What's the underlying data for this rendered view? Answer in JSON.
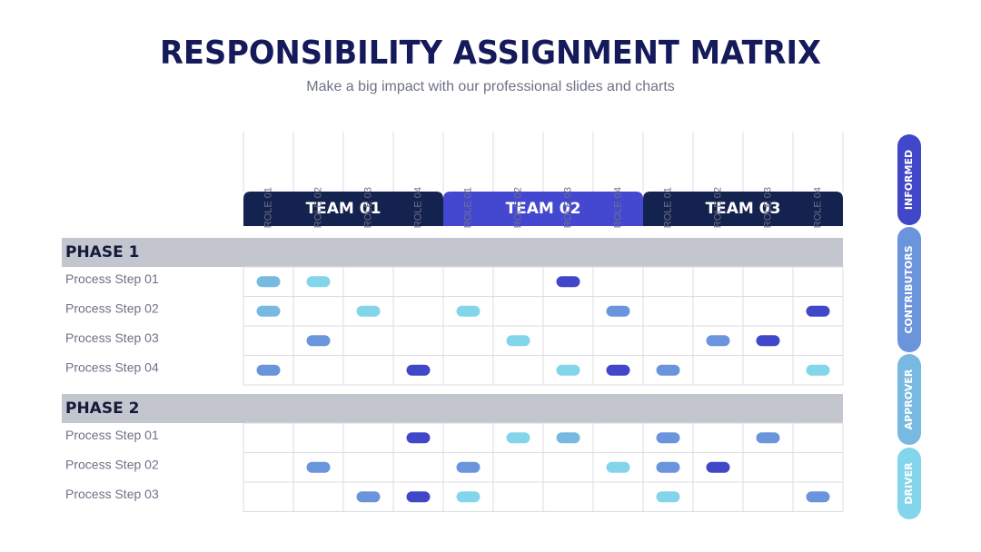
{
  "header": {
    "title": "RESPONSIBILITY ASSIGNMENT MATRIX",
    "subtitle": "Make a big impact with our professional slides and charts"
  },
  "teams": [
    {
      "name": "TEAM 01",
      "color": "#13224f",
      "roles": [
        "ROLE 01",
        "ROLE 02",
        "ROLE 03",
        "ROLE 04"
      ]
    },
    {
      "name": "TEAM 02",
      "color": "#4448d0",
      "roles": [
        "ROLE 01",
        "ROLE 02",
        "ROLE 03",
        "ROLE 04"
      ]
    },
    {
      "name": "TEAM 03",
      "color": "#13224f",
      "roles": [
        "ROLE 01",
        "ROLE 02",
        "ROLE 03",
        "ROLE 04"
      ]
    }
  ],
  "legend": [
    {
      "label": "INFORMED",
      "color": "#4047c9"
    },
    {
      "label": "CONTRIBUTORS",
      "color": "#6a94dc"
    },
    {
      "label": "APPROVER",
      "color": "#77b9e0"
    },
    {
      "label": "DRIVER",
      "color": "#82d5ea"
    }
  ],
  "phases": [
    {
      "title": "PHASE 1",
      "steps": [
        {
          "label": "Process Step 01",
          "cells": [
            "APPROVER",
            "DRIVER",
            null,
            null,
            null,
            null,
            "INFORMED",
            null,
            null,
            null,
            null,
            null
          ]
        },
        {
          "label": "Process Step 02",
          "cells": [
            "APPROVER",
            null,
            "DRIVER",
            null,
            "DRIVER",
            null,
            null,
            "CONTRIBUTORS",
            null,
            null,
            null,
            "INFORMED"
          ]
        },
        {
          "label": "Process Step 03",
          "cells": [
            null,
            "CONTRIBUTORS",
            null,
            null,
            null,
            "DRIVER",
            null,
            null,
            null,
            "CONTRIBUTORS",
            "INFORMED",
            null
          ]
        },
        {
          "label": "Process Step 04",
          "cells": [
            "CONTRIBUTORS",
            null,
            null,
            "INFORMED",
            null,
            null,
            "DRIVER",
            "INFORMED",
            "CONTRIBUTORS",
            null,
            null,
            "DRIVER"
          ]
        }
      ]
    },
    {
      "title": "PHASE 2",
      "steps": [
        {
          "label": "Process Step 01",
          "cells": [
            null,
            null,
            null,
            "INFORMED",
            null,
            "DRIVER",
            "APPROVER",
            null,
            "CONTRIBUTORS",
            null,
            "CONTRIBUTORS",
            null
          ]
        },
        {
          "label": "Process Step 02",
          "cells": [
            null,
            "CONTRIBUTORS",
            null,
            null,
            "CONTRIBUTORS",
            null,
            null,
            "DRIVER",
            "CONTRIBUTORS",
            "INFORMED",
            null,
            null
          ]
        },
        {
          "label": "Process Step 03",
          "cells": [
            null,
            null,
            "CONTRIBUTORS",
            "INFORMED",
            "DRIVER",
            null,
            null,
            null,
            "DRIVER",
            null,
            null,
            "CONTRIBUTORS"
          ]
        }
      ]
    }
  ]
}
